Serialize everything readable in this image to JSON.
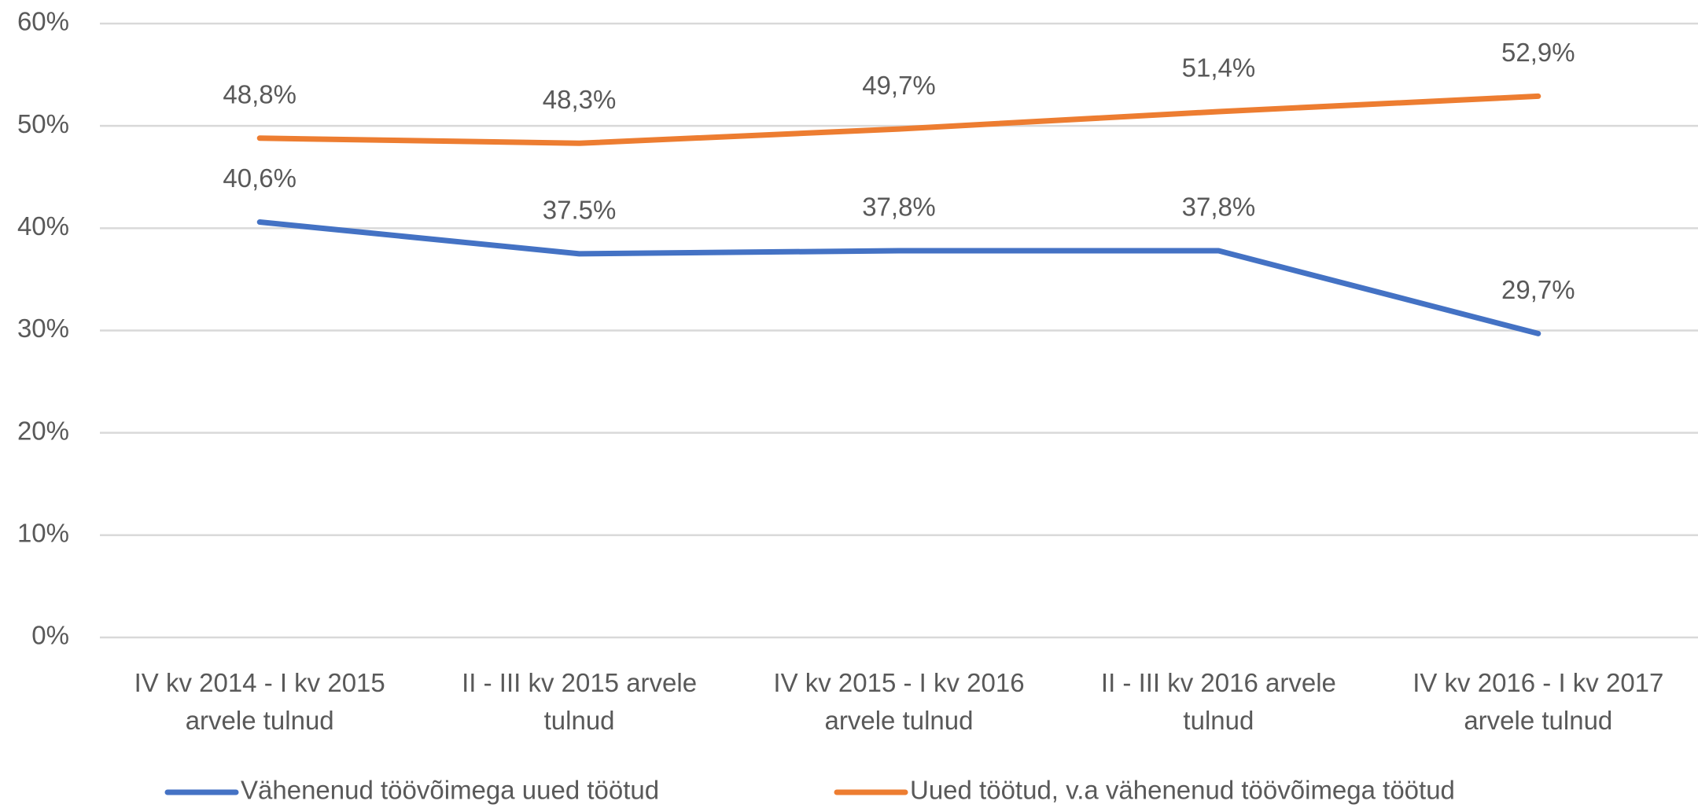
{
  "chart_data": {
    "type": "line",
    "categories": [
      "IV kv 2014 - I kv 2015 arvele tulnud",
      "II - III kv 2015 arvele tulnud",
      "IV kv 2015 - I kv 2016 arvele tulnud",
      "II - III kv 2016 arvele tulnud",
      "IV kv 2016 - I kv 2017 arvele tulnud"
    ],
    "series": [
      {
        "name": "Vähenenud töövõimega uued töötud",
        "color": "#4472c4",
        "values": [
          40.6,
          37.5,
          37.8,
          37.8,
          29.7
        ],
        "value_labels": [
          "40,6%",
          "37.5%",
          "37,8%",
          "37,8%",
          "29,7%"
        ]
      },
      {
        "name": "Uued töötud, v.a vähenenud töövõimega töötud",
        "color": "#ed7d31",
        "values": [
          48.8,
          48.3,
          49.7,
          51.4,
          52.9
        ],
        "value_labels": [
          "48,8%",
          "48,3%",
          "49,7%",
          "51,4%",
          "52,9%"
        ]
      }
    ],
    "ylim": [
      0,
      60
    ],
    "yticks": [
      {
        "value": 0,
        "label": "0%"
      },
      {
        "value": 10,
        "label": "10%"
      },
      {
        "value": 20,
        "label": "20%"
      },
      {
        "value": 30,
        "label": "30%"
      },
      {
        "value": 40,
        "label": "40%"
      },
      {
        "value": 50,
        "label": "50%"
      },
      {
        "value": 60,
        "label": "60%"
      }
    ],
    "grid": true,
    "legend": "bottom"
  }
}
